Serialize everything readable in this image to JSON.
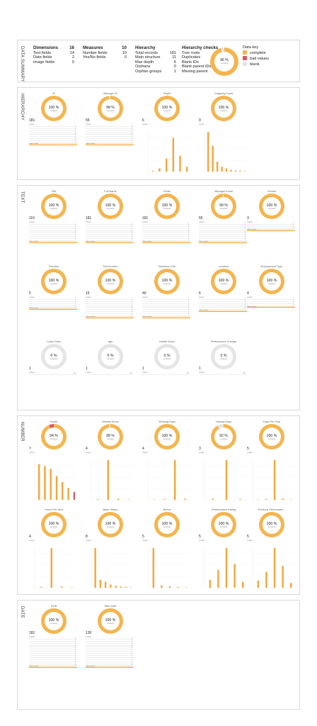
{
  "colors": {
    "complete": "#f4b54f",
    "bad": "#d85a6a",
    "blank": "#e5e5e5",
    "bar": "#f4a53b"
  },
  "summary": {
    "section_label": "DATA SUMMARY",
    "col1": {
      "title": "Dimensions",
      "title_val": "16",
      "rows": [
        [
          "Text fields",
          "14"
        ],
        [
          "Date fields",
          "2"
        ],
        [
          "Image fields",
          "0"
        ]
      ]
    },
    "col2": {
      "title": "Measures",
      "title_val": "10",
      "rows": [
        [
          "Number fields",
          "10"
        ],
        [
          "Yes/No fields",
          "0"
        ]
      ]
    },
    "col3": {
      "title": "Hierarchy",
      "rows": [
        [
          "Total records",
          "181"
        ],
        [
          "Main structure",
          "11"
        ],
        [
          "Max depth",
          "6"
        ],
        [
          "Orphans",
          "0"
        ],
        [
          "Orphan groups",
          "1"
        ]
      ]
    },
    "col4": {
      "title": "Hierarchy checks",
      "rows": [
        [
          "Tree roots",
          "2"
        ],
        [
          "Duplicates",
          "0"
        ],
        [
          "Blank IDs",
          "0"
        ],
        [
          "Blank parent IDs",
          "2"
        ],
        [
          "Missing parent",
          "0"
        ]
      ]
    },
    "donut": {
      "value": "96 %",
      "label": "complete",
      "pct": 96
    },
    "key": {
      "title": "Data key",
      "items": [
        {
          "label": "complete",
          "color": "#f4b54f"
        },
        {
          "label": "bad values",
          "color": "#d85a6a"
        },
        {
          "label": "blank",
          "color": "#e5e5e5"
        }
      ]
    }
  },
  "sections": [
    {
      "label": "HIERARCHY",
      "cards": [
        {
          "title": "ID",
          "pct": 100,
          "value": "100 %",
          "count": "181",
          "type": "list",
          "rows": 9
        },
        {
          "title": "Manager ID",
          "pct": 98,
          "value": "98 %",
          "count": "55",
          "type": "list",
          "rows": 9
        },
        {
          "title": "Depth",
          "pct": 100,
          "value": "100 %",
          "count": "6",
          "type": "bars",
          "bars": [
            2,
            8,
            33,
            85,
            40,
            12
          ]
        },
        {
          "title": "Outgoing Count",
          "pct": 100,
          "value": "100 %",
          "count": "9",
          "type": "bars",
          "bars": [
            100,
            65,
            25,
            12,
            8,
            4,
            3,
            2,
            1
          ]
        }
      ]
    },
    {
      "label": "TEXT",
      "cards": [
        {
          "title": "Title",
          "pct": 100,
          "value": "100 %",
          "count": "115",
          "type": "list",
          "rows": 9
        },
        {
          "title": "Full Name",
          "pct": 100,
          "value": "100 %",
          "count": "181",
          "type": "list",
          "rows": 9
        },
        {
          "title": "Email",
          "pct": 100,
          "value": "100 %",
          "count": "181",
          "type": "list",
          "rows": 9
        },
        {
          "title": "Manager Email",
          "pct": 99,
          "value": "99 %",
          "count": "55",
          "type": "list",
          "rows": 9
        },
        {
          "title": "Gender",
          "pct": 100,
          "value": "100 %",
          "count": "3",
          "type": "list",
          "rows": 3
        },
        {
          "title": "Function",
          "pct": 100,
          "value": "100 %",
          "count": "5",
          "type": "list",
          "rows": 5
        },
        {
          "title": "Sub-function",
          "pct": 100,
          "value": "100 %",
          "count": "15",
          "type": "list",
          "rows": 9
        },
        {
          "title": "Business Unit",
          "pct": 100,
          "value": "100 %",
          "count": "40",
          "type": "list",
          "rows": 9
        },
        {
          "title": "Location",
          "pct": 100,
          "value": "100 %",
          "count": "6",
          "type": "list",
          "rows": 6
        },
        {
          "title": "Employment Type",
          "pct": 100,
          "value": "100 %",
          "count": "4",
          "type": "list",
          "rows": 4
        },
        {
          "title": "Leave Date",
          "pct": 0,
          "value": "0 %",
          "count": "1",
          "type": "blank"
        },
        {
          "title": "Age",
          "pct": 0,
          "value": "0 %",
          "count": "1",
          "type": "blank"
        },
        {
          "title": "Health Score",
          "pct": 0,
          "value": "0 %",
          "count": "1",
          "type": "blank"
        },
        {
          "title": "Performance Change",
          "pct": 0,
          "value": "0 %",
          "count": "1",
          "type": "blank"
        }
      ]
    },
    {
      "label": "NUMBER",
      "cards": [
        {
          "title": "Grade",
          "pct": 94,
          "value": "94 %",
          "count": "7",
          "type": "bars",
          "bars": [
            90,
            85,
            78,
            60,
            45,
            30,
            20
          ],
          "bad": 6
        },
        {
          "title": "Weekly Hours",
          "pct": 98,
          "value": "98 %",
          "count": "4",
          "type": "bars",
          "bars": [
            2,
            100,
            3,
            1
          ]
        },
        {
          "title": "Working Days",
          "pct": 100,
          "value": "100 %",
          "count": "4",
          "type": "bars",
          "bars": [
            1,
            2,
            100,
            3
          ]
        },
        {
          "title": "Holiday Days",
          "pct": 92,
          "value": "92 %",
          "count": "3",
          "type": "bars",
          "bars": [
            3,
            100,
            2
          ]
        },
        {
          "title": "Days Per Year",
          "pct": 100,
          "value": "100 %",
          "count": "5",
          "type": "bars",
          "bars": [
            1,
            2,
            100,
            3,
            1
          ]
        },
        {
          "title": "Hours Per Year",
          "pct": 100,
          "value": "100 %",
          "count": "4",
          "type": "bars",
          "bars": [
            2,
            100,
            3,
            1
          ]
        },
        {
          "title": "Base Salary",
          "pct": 100,
          "value": "100 %",
          "count": "8",
          "type": "bars",
          "bars": [
            100,
            20,
            15,
            8,
            5,
            3,
            2,
            1
          ]
        },
        {
          "title": "Bonus",
          "pct": 100,
          "value": "100 %",
          "count": "5",
          "type": "bars",
          "bars": [
            100,
            6,
            4,
            2,
            1
          ]
        },
        {
          "title": "Performance Rating",
          "pct": 100,
          "value": "100 %",
          "count": "5",
          "type": "bars",
          "bars": [
            20,
            45,
            100,
            60,
            15
          ]
        },
        {
          "title": "Previous Performanc...",
          "pct": 100,
          "value": "100 %",
          "count": "5",
          "type": "bars",
          "bars": [
            18,
            40,
            100,
            55,
            12
          ]
        }
      ]
    },
    {
      "label": "DATE",
      "cards": [
        {
          "title": "DOB",
          "pct": 100,
          "value": "100 %",
          "count": "181",
          "type": "list",
          "rows": 14
        },
        {
          "title": "Start Date",
          "pct": 100,
          "value": "100 %",
          "count": "130",
          "type": "list",
          "rows": 14
        }
      ]
    }
  ],
  "labels": {
    "complete": "complete",
    "unique": "unique",
    "others": "Others values"
  }
}
